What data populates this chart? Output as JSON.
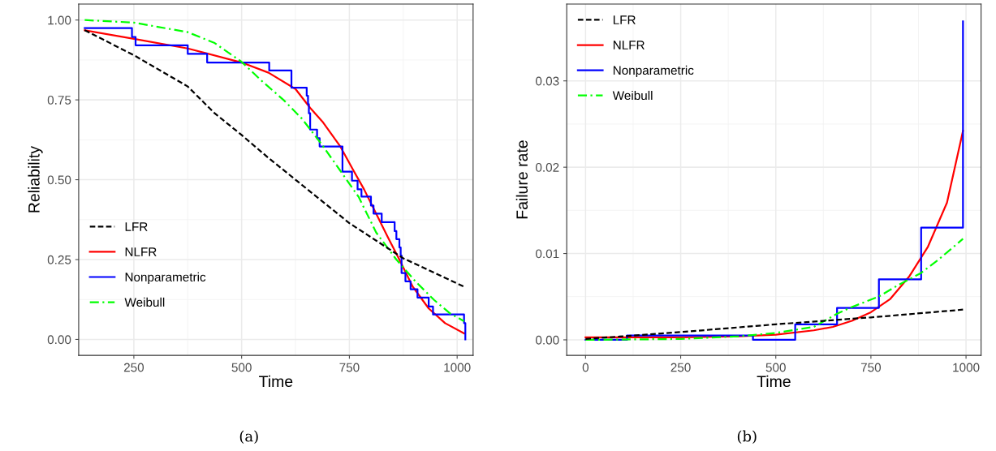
{
  "chart_data": [
    {
      "type": "line",
      "xlabel": "Time",
      "ylabel": "Reliability",
      "xlim": [
        122,
        1037
      ],
      "ylim": [
        -0.05,
        1.05
      ],
      "xticks": [
        250,
        500,
        750,
        1000
      ],
      "yticks": [
        {
          "value": 0,
          "label": "0.00"
        },
        {
          "value": 0.25,
          "label": "0.25"
        },
        {
          "value": 0.5,
          "label": "0.50"
        },
        {
          "value": 0.75,
          "label": "0.75"
        },
        {
          "value": 1,
          "label": "1.00"
        }
      ],
      "grid": true,
      "legend": "bottom left",
      "annotations": [
        "(a)"
      ],
      "series": [
        {
          "name": "LFR",
          "color": "#000000",
          "line_style": "dashed",
          "x": [
            136,
            250,
            375,
            437.5,
            500,
            562.5,
            625,
            687.5,
            750,
            812.5,
            875,
            1016
          ],
          "values": [
            0.968,
            0.89,
            0.792,
            0.708,
            0.64,
            0.568,
            0.5,
            0.432,
            0.364,
            0.309,
            0.254,
            0.165
          ]
        },
        {
          "name": "NLFR",
          "color": "#ff0000",
          "line_style": "solid",
          "x": [
            136,
            250,
            375,
            500,
            562.5,
            625,
            659,
            687.5,
            728,
            759,
            784,
            812,
            840,
            866,
            897,
            934,
            972,
            1016
          ],
          "values": [
            0.968,
            0.941,
            0.911,
            0.867,
            0.835,
            0.784,
            0.725,
            0.682,
            0.606,
            0.53,
            0.47,
            0.394,
            0.318,
            0.25,
            0.165,
            0.097,
            0.051,
            0.019
          ]
        },
        {
          "name": "Nonparametric",
          "color": "#0000ff",
          "type": "step",
          "line_style": "solid",
          "x": [
            136,
            245.6,
            254,
            375,
            420,
            564,
            615.6,
            651,
            654,
            656,
            659,
            675,
            681,
            734,
            756,
            769,
            778,
            800,
            806,
            825,
            855,
            859,
            866,
            869,
            871,
            880,
            892,
            908,
            934,
            944,
            1016,
            1019
          ],
          "values": [
            0.975,
            0.947,
            0.921,
            0.894,
            0.867,
            0.842,
            0.788,
            0.763,
            0.737,
            0.708,
            0.657,
            0.63,
            0.604,
            0.525,
            0.497,
            0.47,
            0.447,
            0.419,
            0.394,
            0.367,
            0.339,
            0.314,
            0.288,
            0.263,
            0.208,
            0.182,
            0.157,
            0.131,
            0.103,
            0.078,
            0.051,
            0.0
          ]
        },
        {
          "name": "Weibull",
          "color": "#00ff00",
          "line_style": "dashdot",
          "x": [
            136,
            250,
            375,
            437.5,
            500,
            547,
            597,
            640,
            684,
            728,
            772,
            812,
            859,
            903,
            947,
            984,
            1016
          ],
          "values": [
            1.0,
            0.992,
            0.962,
            0.928,
            0.869,
            0.809,
            0.75,
            0.691,
            0.614,
            0.53,
            0.445,
            0.335,
            0.25,
            0.182,
            0.123,
            0.081,
            0.057
          ]
        }
      ]
    },
    {
      "type": "line",
      "xlabel": "Time",
      "ylabel": "Failure rate",
      "xlim": [
        -49.5,
        1039.5
      ],
      "ylim": [
        -0.0018,
        0.0389
      ],
      "xticks": [
        0,
        250,
        500,
        750,
        1000
      ],
      "yticks": [
        {
          "value": 0,
          "label": "0.00"
        },
        {
          "value": 0.01,
          "label": "0.01"
        },
        {
          "value": 0.02,
          "label": "0.02"
        },
        {
          "value": 0.03,
          "label": "0.03"
        }
      ],
      "grid": true,
      "legend": "top left",
      "annotations": [
        "(b)"
      ],
      "series": [
        {
          "name": "LFR",
          "color": "#000000",
          "line_style": "dashed",
          "x": [
            0,
            250,
            500,
            750,
            992
          ],
          "values": [
            0.0001,
            0.0009,
            0.0018,
            0.0026,
            0.0035
          ]
        },
        {
          "name": "NLFR",
          "color": "#ff0000",
          "line_style": "solid",
          "x": [
            0,
            250,
            400,
            500,
            600,
            650,
            700,
            750,
            800,
            850,
            900,
            950,
            992
          ],
          "values": [
            0.0003,
            0.0003,
            0.0004,
            0.0006,
            0.0011,
            0.0015,
            0.0022,
            0.0032,
            0.0047,
            0.0073,
            0.0108,
            0.0159,
            0.0242
          ]
        },
        {
          "name": "Nonparametric",
          "color": "#0000ff",
          "type": "step",
          "line_style": "solid",
          "x": [
            0,
            109,
            440,
            551,
            661,
            771,
            882,
            992
          ],
          "values": [
            0.0,
            0.0005,
            0.0,
            0.0018,
            0.0037,
            0.007,
            0.013,
            0.0369
          ]
        },
        {
          "name": "Weibull",
          "color": "#00ff00",
          "line_style": "dashdot",
          "x": [
            0,
            250,
            400,
            500,
            600,
            660,
            700,
            770,
            820,
            880,
            925,
            992
          ],
          "values": [
            0.0,
            0.0001,
            0.0004,
            0.0008,
            0.0015,
            0.003,
            0.0038,
            0.005,
            0.0063,
            0.0077,
            0.0092,
            0.0117
          ]
        }
      ]
    }
  ]
}
